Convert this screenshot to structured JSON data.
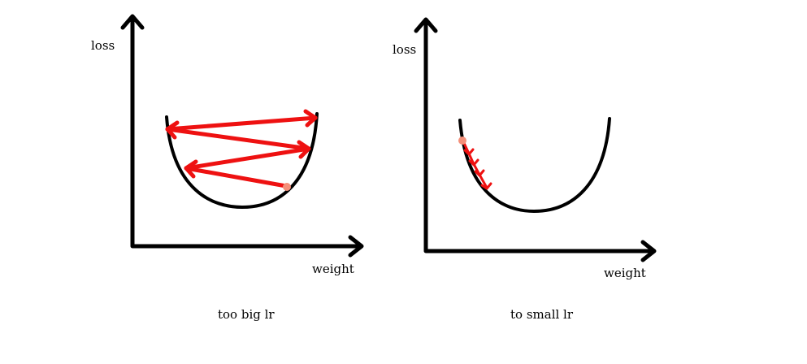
{
  "colors": {
    "axis": "#000000",
    "curve": "#000000",
    "step_arrow": "#ee1111",
    "start_point": "#f4907a"
  },
  "panels": [
    {
      "name": "too-big-lr-panel",
      "y_axis_label": "loss",
      "x_axis_label": "weight",
      "caption": "too big lr"
    },
    {
      "name": "too-small-lr-panel",
      "y_axis_label": "loss",
      "x_axis_label": "weight",
      "caption": "to small lr"
    }
  ]
}
